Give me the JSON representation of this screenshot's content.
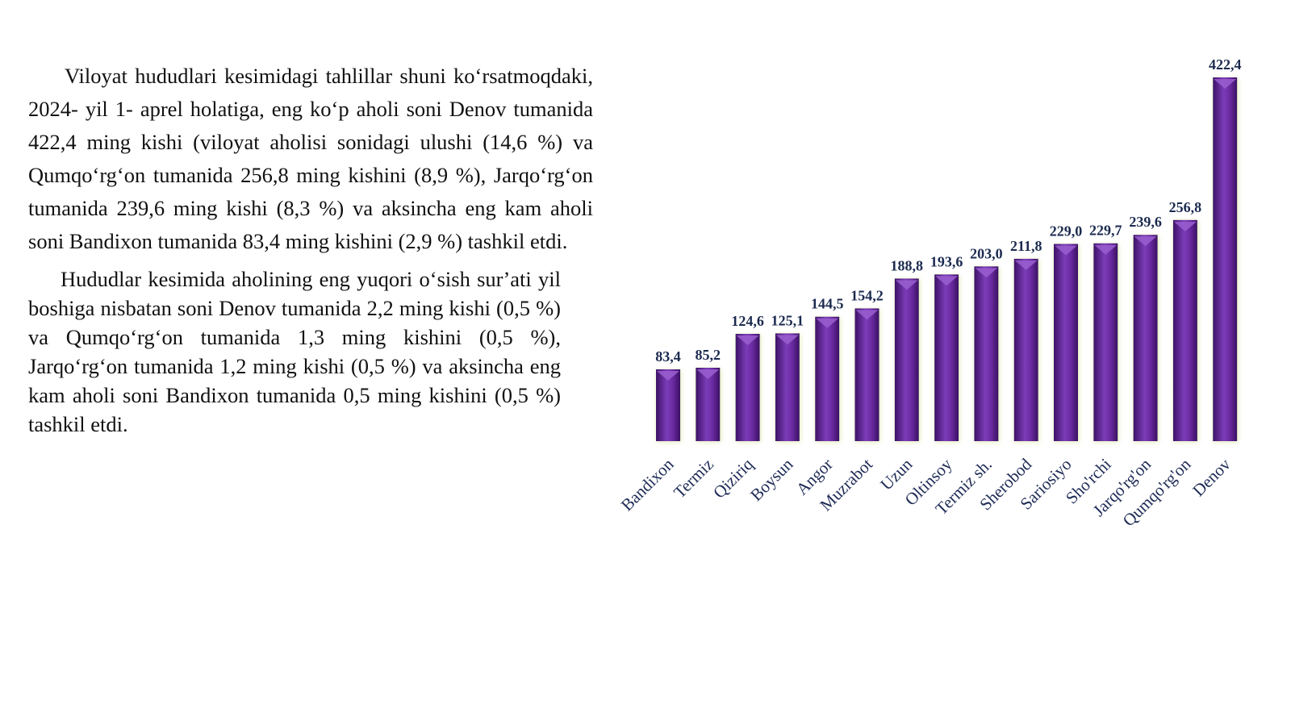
{
  "text": {
    "paragraph_1": "Viloyat hududlari kesimidagi tahlillar shuni koʻrsatmoqdaki, 2024- yil 1- aprel holatiga, eng koʻp aholi soni Denov tumanida 422,4 ming kishi (viloyat aholisi sonidagi ulushi (14,6 %) va Qumqoʻrgʻon tumanida 256,8 ming kishini (8,9 %), Jarqoʻrgʻon tumanida 239,6 ming kishi (8,3 %) va aksincha eng kam aholi soni Bandixon tumanida 83,4 ming kishini (2,9 %) tashkil etdi.",
    "paragraph_2": "Hududlar kesimida aholining eng yuqori oʻsish surʼati yil boshiga nisbatan soni Denov tumanida 2,2 ming kishi (0,5 %) va Qumqoʻrgʻon tumanida 1,3 ming kishini (0,5 %), Jarqoʻrgʻon tumanida 1,2 ming kishi (0,5 %) va aksincha eng kam aholi soni Bandixon tumanida 0,5 ming kishini (0,5 %) tashkil etdi."
  },
  "colors": {
    "bar": "#6a2aa0",
    "bar_dark": "#3d1266",
    "bar_light": "#9a5fd0",
    "label": "#1d2a55"
  },
  "chart_data": {
    "type": "bar",
    "title": "",
    "xlabel": "",
    "ylabel": "",
    "grid": false,
    "ylim": [
      0,
      422.4
    ],
    "categories": [
      "Bandixon",
      "Termiz",
      "Qiziriq",
      "Boysun",
      "Angor",
      "Muzrabot",
      "Uzun",
      "Oltinsoy",
      "Termiz sh.",
      "Sherobod",
      "Sariosiyo",
      "Sho'rchi",
      "Jarqo'rg'on",
      "Qumqo'rg'on",
      "Denov"
    ],
    "values": [
      83.4,
      85.2,
      124.6,
      125.1,
      144.5,
      154.2,
      188.8,
      193.6,
      203.0,
      211.8,
      229.0,
      229.7,
      239.6,
      256.8,
      422.4
    ],
    "value_labels": [
      "83,4",
      "85,2",
      "124,6",
      "125,1",
      "144,5",
      "154,2",
      "188,8",
      "193,6",
      "203,0",
      "211,8",
      "229,0",
      "229,7",
      "239,6",
      "256,8",
      "422,4"
    ]
  }
}
